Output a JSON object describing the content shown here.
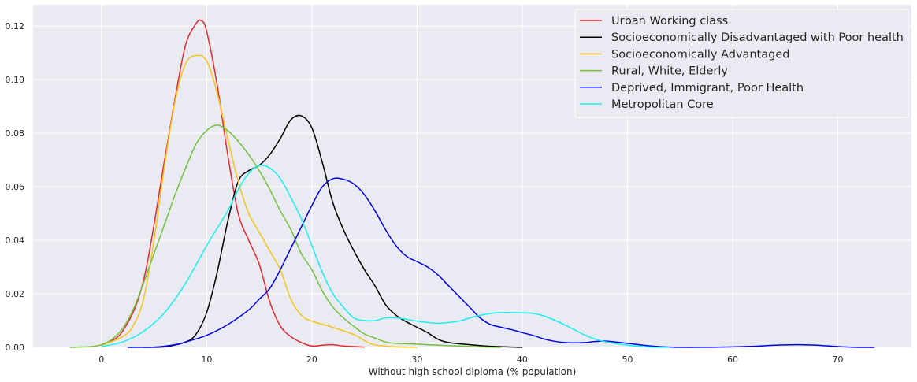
{
  "chart_data": {
    "type": "line",
    "title": "",
    "xlabel": "Without high school diploma (% population)",
    "ylabel": "",
    "xlim": [
      -6.5,
      77
    ],
    "ylim": [
      0,
      0.128
    ],
    "xticks": [
      0,
      10,
      20,
      30,
      40,
      50,
      60,
      70
    ],
    "yticks": [
      0.0,
      0.02,
      0.04,
      0.06,
      0.08,
      0.1,
      0.12
    ],
    "xtick_labels": [
      "0",
      "10",
      "20",
      "30",
      "40",
      "50",
      "60",
      "70"
    ],
    "ytick_labels": [
      "0.00",
      "0.02",
      "0.04",
      "0.06",
      "0.08",
      "0.10",
      "0.12"
    ],
    "grid": true,
    "legend_position": "top-right",
    "series": [
      {
        "name": "Urban Working class",
        "color": "#e8262c",
        "points": [
          [
            0,
            0.001
          ],
          [
            2,
            0.006
          ],
          [
            4,
            0.025
          ],
          [
            6,
            0.07
          ],
          [
            7,
            0.093
          ],
          [
            8,
            0.113
          ],
          [
            9,
            0.121
          ],
          [
            9.5,
            0.122
          ],
          [
            10,
            0.118
          ],
          [
            11,
            0.098
          ],
          [
            12,
            0.072
          ],
          [
            13,
            0.05
          ],
          [
            14,
            0.04
          ],
          [
            15,
            0.031
          ],
          [
            16,
            0.017
          ],
          [
            17,
            0.008
          ],
          [
            18,
            0.004
          ],
          [
            19,
            0.0018
          ],
          [
            20,
            0.0005
          ],
          [
            21,
            0.0008
          ],
          [
            22,
            0.001
          ],
          [
            23,
            0.0005
          ],
          [
            25,
            0.0001
          ]
        ]
      },
      {
        "name": "Socioeconomically Disadvantaged with Poor health",
        "color": "#000000",
        "points": [
          [
            4,
            0.0
          ],
          [
            6,
            0.0002
          ],
          [
            8,
            0.002
          ],
          [
            9,
            0.005
          ],
          [
            10,
            0.013
          ],
          [
            11,
            0.028
          ],
          [
            12,
            0.047
          ],
          [
            13,
            0.062
          ],
          [
            14,
            0.066
          ],
          [
            15,
            0.068
          ],
          [
            16,
            0.072
          ],
          [
            17,
            0.078
          ],
          [
            18,
            0.085
          ],
          [
            19,
            0.0865
          ],
          [
            20,
            0.082
          ],
          [
            21,
            0.069
          ],
          [
            22,
            0.054
          ],
          [
            23,
            0.044
          ],
          [
            24,
            0.036
          ],
          [
            25,
            0.029
          ],
          [
            26,
            0.023
          ],
          [
            27,
            0.016
          ],
          [
            28,
            0.012
          ],
          [
            29,
            0.0095
          ],
          [
            30,
            0.0075
          ],
          [
            31,
            0.0055
          ],
          [
            32,
            0.003
          ],
          [
            33,
            0.0018
          ],
          [
            35,
            0.001
          ],
          [
            37,
            0.0004
          ],
          [
            40,
            0.0
          ]
        ]
      },
      {
        "name": "Socioeconomically Advantaged",
        "color": "#f5c518",
        "points": [
          [
            0,
            0.0007
          ],
          [
            2,
            0.004
          ],
          [
            3,
            0.008
          ],
          [
            4,
            0.018
          ],
          [
            5,
            0.04
          ],
          [
            6,
            0.068
          ],
          [
            7,
            0.092
          ],
          [
            8,
            0.106
          ],
          [
            9,
            0.109
          ],
          [
            10,
            0.107
          ],
          [
            11,
            0.095
          ],
          [
            12,
            0.078
          ],
          [
            13,
            0.062
          ],
          [
            14,
            0.05
          ],
          [
            15,
            0.043
          ],
          [
            16,
            0.036
          ],
          [
            17,
            0.029
          ],
          [
            18,
            0.018
          ],
          [
            19,
            0.012
          ],
          [
            20,
            0.0098
          ],
          [
            22,
            0.0075
          ],
          [
            24,
            0.0048
          ],
          [
            25,
            0.0025
          ],
          [
            26,
            0.0009
          ],
          [
            28,
            0.0002
          ],
          [
            30,
            0.0
          ]
        ]
      },
      {
        "name": "Rural, White, Elderly",
        "color": "#74c13d",
        "points": [
          [
            -3,
            0.0
          ],
          [
            -1,
            0.0003
          ],
          [
            0,
            0.001
          ],
          [
            1,
            0.003
          ],
          [
            2,
            0.007
          ],
          [
            3,
            0.014
          ],
          [
            4,
            0.024
          ],
          [
            5,
            0.035
          ],
          [
            6,
            0.046
          ],
          [
            7,
            0.057
          ],
          [
            8,
            0.067
          ],
          [
            9,
            0.076
          ],
          [
            10,
            0.081
          ],
          [
            11,
            0.083
          ],
          [
            12,
            0.081
          ],
          [
            13,
            0.077
          ],
          [
            14,
            0.072
          ],
          [
            15,
            0.066
          ],
          [
            16,
            0.059
          ],
          [
            17,
            0.051
          ],
          [
            18,
            0.044
          ],
          [
            19,
            0.035
          ],
          [
            20,
            0.029
          ],
          [
            21,
            0.021
          ],
          [
            22,
            0.015
          ],
          [
            23,
            0.011
          ],
          [
            24,
            0.0078
          ],
          [
            25,
            0.005
          ],
          [
            26,
            0.0035
          ],
          [
            27,
            0.002
          ],
          [
            28,
            0.0015
          ],
          [
            30,
            0.0012
          ],
          [
            32,
            0.0008
          ],
          [
            34,
            0.0005
          ],
          [
            36,
            0.0002
          ],
          [
            38,
            0.0
          ]
        ]
      },
      {
        "name": "Deprived, Immigrant, Poor Health",
        "color": "#0000e6",
        "points": [
          [
            2.5,
            0.0
          ],
          [
            5,
            0.0001
          ],
          [
            7,
            0.001
          ],
          [
            8,
            0.002
          ],
          [
            10,
            0.0045
          ],
          [
            12,
            0.0085
          ],
          [
            14,
            0.014
          ],
          [
            15,
            0.018
          ],
          [
            16,
            0.022
          ],
          [
            17,
            0.029
          ],
          [
            18,
            0.037
          ],
          [
            19,
            0.045
          ],
          [
            20,
            0.053
          ],
          [
            21,
            0.06
          ],
          [
            22,
            0.063
          ],
          [
            23,
            0.0628
          ],
          [
            24,
            0.061
          ],
          [
            25,
            0.057
          ],
          [
            26,
            0.051
          ],
          [
            27,
            0.044
          ],
          [
            28,
            0.038
          ],
          [
            29,
            0.034
          ],
          [
            30,
            0.032
          ],
          [
            31,
            0.03
          ],
          [
            32,
            0.027
          ],
          [
            33,
            0.023
          ],
          [
            34,
            0.019
          ],
          [
            35,
            0.015
          ],
          [
            36,
            0.011
          ],
          [
            37,
            0.0085
          ],
          [
            38,
            0.0075
          ],
          [
            39,
            0.0066
          ],
          [
            40,
            0.0055
          ],
          [
            41,
            0.0045
          ],
          [
            42,
            0.0032
          ],
          [
            43,
            0.0023
          ],
          [
            44,
            0.0018
          ],
          [
            45,
            0.0017
          ],
          [
            46,
            0.0018
          ],
          [
            47,
            0.0022
          ],
          [
            48,
            0.0023
          ],
          [
            50,
            0.0015
          ],
          [
            52,
            0.0006
          ],
          [
            54,
            0.0001
          ],
          [
            56,
            0.0
          ],
          [
            59,
            0.0001
          ],
          [
            62,
            0.0004
          ],
          [
            64,
            0.0008
          ],
          [
            66,
            0.001
          ],
          [
            68,
            0.0008
          ],
          [
            70,
            0.0003
          ],
          [
            72,
            0.0
          ],
          [
            73.5,
            0.0
          ]
        ]
      },
      {
        "name": "Metropolitan Core",
        "color": "#19f0f0",
        "points": [
          [
            0,
            0.0003
          ],
          [
            2,
            0.002
          ],
          [
            4,
            0.006
          ],
          [
            6,
            0.013
          ],
          [
            8,
            0.024
          ],
          [
            10,
            0.038
          ],
          [
            12,
            0.051
          ],
          [
            13,
            0.059
          ],
          [
            14,
            0.065
          ],
          [
            15,
            0.068
          ],
          [
            16,
            0.067
          ],
          [
            17,
            0.063
          ],
          [
            18,
            0.056
          ],
          [
            19,
            0.048
          ],
          [
            20,
            0.038
          ],
          [
            21,
            0.028
          ],
          [
            22,
            0.02
          ],
          [
            23,
            0.015
          ],
          [
            24,
            0.011
          ],
          [
            25,
            0.01
          ],
          [
            26,
            0.01
          ],
          [
            27,
            0.011
          ],
          [
            28,
            0.011
          ],
          [
            29,
            0.0105
          ],
          [
            30,
            0.0098
          ],
          [
            31,
            0.0093
          ],
          [
            32,
            0.009
          ],
          [
            33,
            0.0093
          ],
          [
            34,
            0.0098
          ],
          [
            35,
            0.011
          ],
          [
            36,
            0.012
          ],
          [
            37,
            0.0127
          ],
          [
            38,
            0.013
          ],
          [
            39,
            0.013
          ],
          [
            40,
            0.0129
          ],
          [
            41,
            0.0127
          ],
          [
            42,
            0.0118
          ],
          [
            43,
            0.0103
          ],
          [
            44,
            0.0085
          ],
          [
            45,
            0.0065
          ],
          [
            46,
            0.0045
          ],
          [
            47,
            0.003
          ],
          [
            48,
            0.002
          ],
          [
            50,
            0.0008
          ],
          [
            52,
            0.0002
          ],
          [
            54,
            0.0
          ]
        ]
      }
    ]
  }
}
